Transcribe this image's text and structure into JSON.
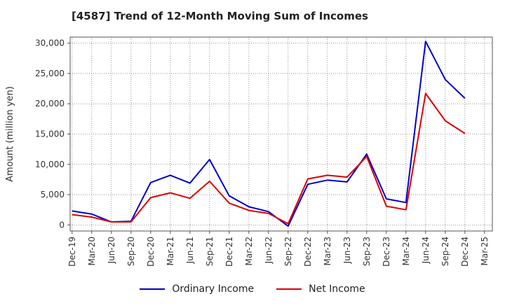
{
  "chart_data": {
    "type": "line",
    "title": "[4587]  Trend of 12-Month Moving Sum of Incomes",
    "xlabel": "",
    "ylabel": "Amount (million yen)",
    "ylim": [
      -1000,
      31000
    ],
    "yticks": [
      0,
      5000,
      10000,
      15000,
      20000,
      25000,
      30000
    ],
    "ytick_labels": [
      "0",
      "5,000",
      "10,000",
      "15,000",
      "20,000",
      "25,000",
      "30,000"
    ],
    "categories": [
      "Dec-19",
      "Mar-20",
      "Jun-20",
      "Sep-20",
      "Dec-20",
      "Mar-21",
      "Jun-21",
      "Sep-21",
      "Dec-21",
      "Mar-22",
      "Jun-22",
      "Sep-22",
      "Dec-22",
      "Mar-23",
      "Jun-23",
      "Sep-23",
      "Dec-23",
      "Mar-24",
      "Jun-24",
      "Sep-24",
      "Dec-24",
      "Mar-25"
    ],
    "series": [
      {
        "name": "Ordinary Income",
        "color": "#0000cc",
        "values": [
          2300,
          1800,
          500,
          600,
          7000,
          8200,
          6900,
          10800,
          4800,
          3000,
          2200,
          -200,
          6700,
          7400,
          7100,
          11700,
          4300,
          3700,
          30300,
          24000,
          20900,
          null
        ]
      },
      {
        "name": "Net Income",
        "color": "#dd0000",
        "values": [
          1700,
          1300,
          500,
          500,
          4500,
          5300,
          4400,
          7200,
          3600,
          2400,
          1900,
          200,
          7600,
          8200,
          7900,
          11300,
          3100,
          2500,
          21700,
          17200,
          15100,
          null
        ]
      }
    ],
    "grid": true,
    "legend_position": "bottom-center"
  }
}
